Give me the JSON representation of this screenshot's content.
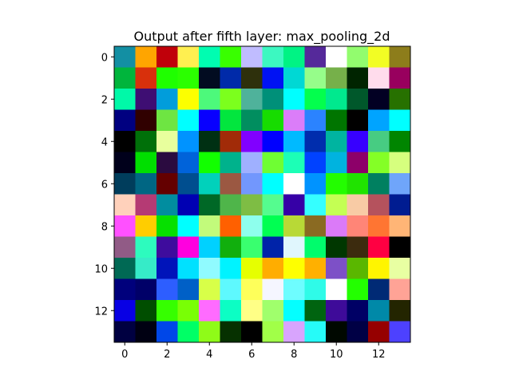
{
  "chart_data": {
    "type": "heatmap",
    "title": "Output after fifth layer: max_pooling_2d",
    "xlabel": "",
    "ylabel": "",
    "rows": 14,
    "cols": 14,
    "xticks": [
      0,
      2,
      4,
      6,
      8,
      10,
      12
    ],
    "yticks": [
      0,
      2,
      4,
      6,
      8,
      10,
      12
    ],
    "grid": false,
    "cells": [
      [
        "#138fa3",
        "#ffa500",
        "#c0000a",
        "#ffef50",
        "#00fdb1",
        "#39ff00",
        "#c0bcff",
        "#3cf8c1",
        "#00f384",
        "#55299a",
        "#ffffff",
        "#92fc6e",
        "#f2fd24",
        "#8d7d1b"
      ],
      [
        "#00b53c",
        "#d8300c",
        "#1fff00",
        "#2bff00",
        "#020c21",
        "#002aa9",
        "#2e300c",
        "#0012f3",
        "#00d8d4",
        "#96fd8a",
        "#76b04a",
        "#002400",
        "#ffdcec",
        "#98005e"
      ],
      [
        "#00f9a8",
        "#3e0e73",
        "#019ddb",
        "#fcff00",
        "#4df97b",
        "#7cff1d",
        "#4fb29b",
        "#009079",
        "#00ffff",
        "#03ff4d",
        "#00e98e",
        "#00582b",
        "#020023",
        "#277100"
      ],
      [
        "#000080",
        "#300000",
        "#6ee542",
        "#00ffff",
        "#0800ff",
        "#02e63e",
        "#018e5f",
        "#17dc00",
        "#db7df9",
        "#2b83ff",
        "#007500",
        "#010000",
        "#00a4ff",
        "#00ffff"
      ],
      [
        "#000000",
        "#007009",
        "#e8ff9d",
        "#0093ff",
        "#003013",
        "#a12b08",
        "#8100ff",
        "#0000ff",
        "#00baff",
        "#002dad",
        "#00b4a0",
        "#3700ff",
        "#47cc82",
        "#008500"
      ],
      [
        "#00001b",
        "#00df00",
        "#2b0b40",
        "#0063da",
        "#12ff00",
        "#00b28c",
        "#9fb0ff",
        "#6ffe33",
        "#1cffb6",
        "#0042ff",
        "#00b3df",
        "#8d0069",
        "#84ff26",
        "#d6ff7e"
      ],
      [
        "#003d5c",
        "#006683",
        "#640000",
        "#004e8f",
        "#01d1bb",
        "#9b5842",
        "#7297fd",
        "#00ffff",
        "#ffffff",
        "#0093ff",
        "#23fd00",
        "#20e300",
        "#008060",
        "#6fa5fa"
      ],
      [
        "#ffd1bb",
        "#b53a74",
        "#018d9f",
        "#0000b3",
        "#006826",
        "#4fb54a",
        "#7ebd44",
        "#55fc8f",
        "#3600a6",
        "#35ffff",
        "#c4ff53",
        "#f8cba5",
        "#b5525d",
        "#001c91"
      ],
      [
        "#ff50ff",
        "#ffcd00",
        "#06e000",
        "#00ffff",
        "#c2fb7b",
        "#ff6000",
        "#8effed",
        "#00ff52",
        "#b8d936",
        "#8a6a22",
        "#db7af8",
        "#ff8577",
        "#ff7532",
        "#ffb576"
      ],
      [
        "#915b86",
        "#2dfbbe",
        "#3e0c9d",
        "#ff00df",
        "#00d1ff",
        "#11af0d",
        "#39ff6f",
        "#0023a9",
        "#e0f6fd",
        "#00fc6c",
        "#003700",
        "#3c2b0e",
        "#ff0042",
        "#000000"
      ],
      [
        "#006954",
        "#36ebc8",
        "#0014ba",
        "#00e1ff",
        "#90fbff",
        "#00f3ff",
        "#e6ff00",
        "#ffad00",
        "#feff00",
        "#ffb000",
        "#7d50c7",
        "#5ab700",
        "#fff500",
        "#e8ffa2"
      ],
      [
        "#00007c",
        "#000068",
        "#2d5eff",
        "#0060c7",
        "#d8ff48",
        "#5ef9fe",
        "#feff5a",
        "#f5f6ff",
        "#6efdff",
        "#2ffbe8",
        "#ffffff",
        "#23ff00",
        "#002a75",
        "#ffa396"
      ],
      [
        "#0800e4",
        "#004e00",
        "#36ff00",
        "#79ff05",
        "#ff6bff",
        "#0cfec4",
        "#ffff86",
        "#a0ff6c",
        "#04ffff",
        "#006410",
        "#3e0b99",
        "#000065",
        "#0089a8",
        "#232500"
      ],
      [
        "#000041",
        "#000012",
        "#0047e8",
        "#00ff66",
        "#8ffb18",
        "#063100",
        "#000000",
        "#a1ff48",
        "#d8a4fd",
        "#26fbf8",
        "#000800",
        "#000045",
        "#960000",
        "#4d41ff"
      ]
    ]
  }
}
